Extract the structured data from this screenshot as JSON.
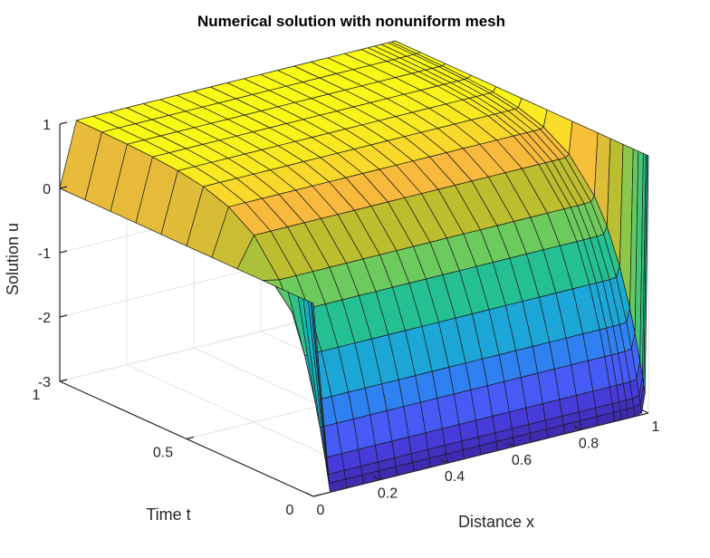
{
  "chart_data": {
    "type": "surface",
    "title": "Numerical solution with nonuniform mesh",
    "xlabel": "Distance x",
    "ylabel": "Time t",
    "zlabel": "Solution u",
    "xlim": [
      0,
      1
    ],
    "ylim": [
      0,
      1
    ],
    "zlim": [
      -3,
      1
    ],
    "x_ticks": [
      {
        "value": 0,
        "label": "0"
      },
      {
        "value": 0.2,
        "label": "0.2"
      },
      {
        "value": 0.4,
        "label": "0.4"
      },
      {
        "value": 0.6,
        "label": "0.6"
      },
      {
        "value": 0.8,
        "label": "0.8"
      },
      {
        "value": 1,
        "label": "1"
      }
    ],
    "y_ticks": [
      {
        "value": 0,
        "label": "0"
      },
      {
        "value": 0.5,
        "label": "0.5"
      },
      {
        "value": 1,
        "label": "1"
      }
    ],
    "z_ticks": [
      {
        "value": -3,
        "label": "-3"
      },
      {
        "value": -2,
        "label": "-2"
      },
      {
        "value": -1,
        "label": "-1"
      },
      {
        "value": 0,
        "label": "0"
      },
      {
        "value": 1,
        "label": "1"
      }
    ],
    "x_mesh": [
      0,
      0.05,
      0.1,
      0.15,
      0.2,
      0.25,
      0.3,
      0.35,
      0.4,
      0.45,
      0.5,
      0.55,
      0.6,
      0.65,
      0.7,
      0.75,
      0.8,
      0.85,
      0.9,
      0.92,
      0.94,
      0.96,
      0.98,
      0.99,
      1.0
    ],
    "t_mesh": [
      0,
      0.005,
      0.01,
      0.02,
      0.04,
      0.06,
      0.1,
      0.15,
      0.2,
      0.3,
      0.4,
      0.5,
      0.6,
      0.7,
      0.8,
      0.9,
      1.0
    ],
    "boundary_values": {
      "left_x0": 0,
      "right_x1": 1
    },
    "u_min": -3,
    "u_max": 1,
    "colormap": "parula",
    "grid": true
  }
}
